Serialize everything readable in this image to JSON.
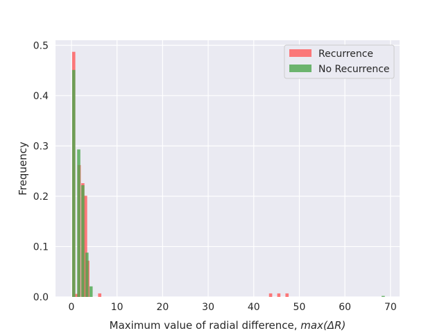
{
  "chart_data": {
    "type": "bar",
    "subtype": "overlapping-histogram",
    "title": "",
    "xlabel": "Maximum value of radial difference, ",
    "xlabel_math": "max(ΔR)",
    "ylabel": "Frequency",
    "xlim": [
      -3.5,
      72
    ],
    "ylim": [
      0,
      0.51
    ],
    "xticks": [
      0,
      10,
      20,
      30,
      40,
      50,
      60,
      70
    ],
    "yticks": [
      0.0,
      0.1,
      0.2,
      0.3,
      0.4,
      0.5
    ],
    "grid": true,
    "legend_position": "top-right",
    "bin_width": 0.7,
    "series": [
      {
        "name": "Recurrence",
        "color": "#ff5a5a",
        "bins": [
          {
            "x": 0.5,
            "value": 0.487
          },
          {
            "x": 1.2,
            "value": 0.006
          },
          {
            "x": 1.7,
            "value": 0.262
          },
          {
            "x": 2.5,
            "value": 0.226
          },
          {
            "x": 3.1,
            "value": 0.201
          },
          {
            "x": 3.6,
            "value": 0.072
          },
          {
            "x": 6.2,
            "value": 0.007
          },
          {
            "x": 43.7,
            "value": 0.007
          },
          {
            "x": 45.5,
            "value": 0.007
          },
          {
            "x": 47.3,
            "value": 0.007
          }
        ]
      },
      {
        "name": "No Recurrence",
        "color": "#4ca64c",
        "bins": [
          {
            "x": 0.5,
            "value": 0.451
          },
          {
            "x": 1.6,
            "value": 0.293
          },
          {
            "x": 2.5,
            "value": 0.222
          },
          {
            "x": 3.4,
            "value": 0.088
          },
          {
            "x": 4.3,
            "value": 0.021
          },
          {
            "x": 68.4,
            "value": 0.002
          }
        ]
      }
    ]
  }
}
